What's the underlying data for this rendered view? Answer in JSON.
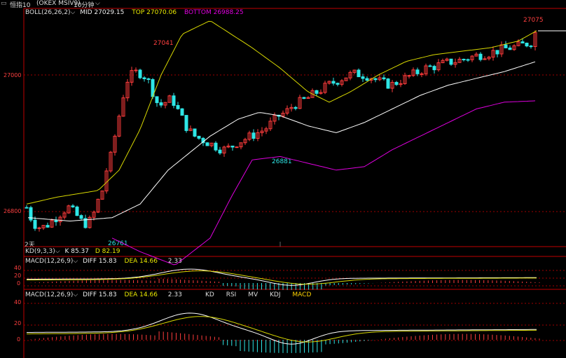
{
  "topbar": {
    "window_icon": "window-icon",
    "title": "恒指10",
    "symbol": "(OKEX MSIV9)",
    "period": "10分钟",
    "period_dropdown_icon": "chevron-down-icon"
  },
  "boll": {
    "name": "BOLL(26,26,2)",
    "mid": "MID 27029.15",
    "top": "TOP 27070.06",
    "bottom": "BOTTOM 26988.25"
  },
  "price_axis": {
    "upper": "27000",
    "lower": "26800"
  },
  "annotations": {
    "high_left": "27041",
    "high_right": "27075",
    "low_mid": "26881",
    "low_left": "26761",
    "days": "2天"
  },
  "kd": {
    "name": "KD(9,3,3)",
    "k": "K 85.37",
    "d": "D 82.19"
  },
  "macd1": {
    "name": "MACD(12,26,9)",
    "diff": "DIFF 15.83",
    "dea": "DEA 14.66",
    "value": "2.33",
    "axis": [
      "40",
      "20",
      "0"
    ]
  },
  "macd2": {
    "name": "MACD(12,26,9)",
    "diff": "DIFF 15.83",
    "dea": "DEA 14.66",
    "value": "2.33",
    "axis": [
      "40",
      "20",
      "0"
    ],
    "tabs": [
      "KD",
      "RSI",
      "MV",
      "KDJ",
      "MACD"
    ]
  },
  "colors": {
    "up": "#ff3c3c",
    "down": "#2ee6e6",
    "boll_band": "#d8d800",
    "boll_mid": "#ffffff",
    "boll_bottom": "#e000e0",
    "active_tab": "#ffd400"
  }
}
